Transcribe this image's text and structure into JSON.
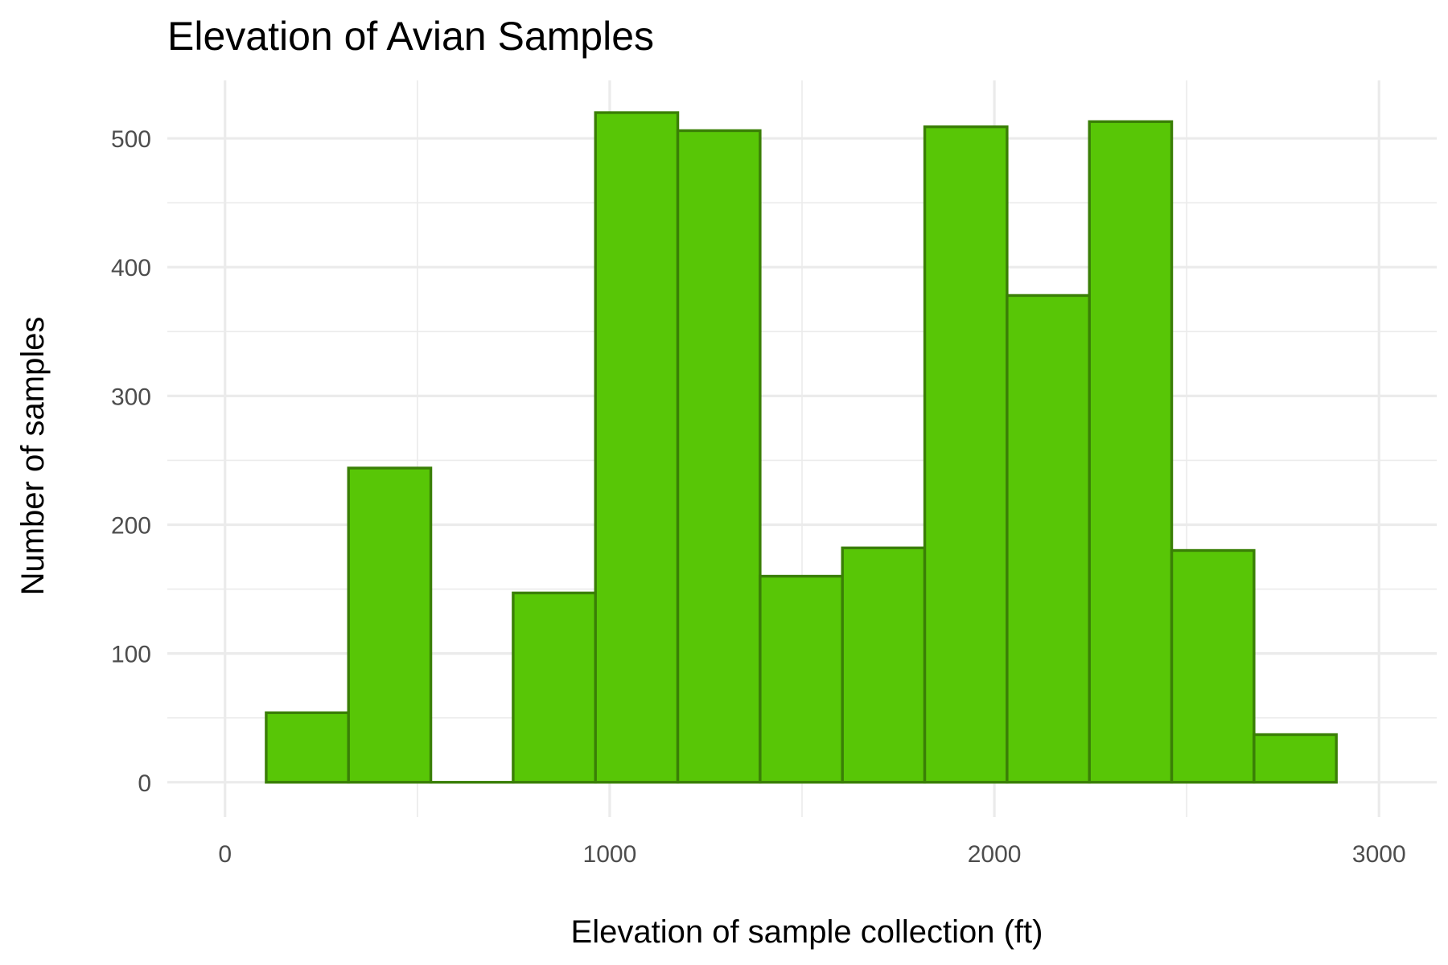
{
  "colors": {
    "bar_fill": "#58C606",
    "bar_stroke": "#3A7F06",
    "grid": "#ebebeb",
    "tick_label": "#4d4d4d"
  },
  "chart_data": {
    "type": "bar",
    "title": "Elevation of Avian Samples",
    "xlabel": "Elevation of sample collection (ft)",
    "ylabel": "Number of samples",
    "xlim": [
      -150,
      3150
    ],
    "ylim": [
      -27,
      545
    ],
    "x_ticks": [
      0,
      1000,
      2000,
      3000
    ],
    "x_tick_labels": [
      "0",
      "1000",
      "2000",
      "3000"
    ],
    "x_minor_ticks": [
      500,
      1500,
      2500
    ],
    "y_ticks": [
      0,
      100,
      200,
      300,
      400,
      500
    ],
    "y_tick_labels": [
      "0",
      "100",
      "200",
      "300",
      "400",
      "500"
    ],
    "y_minor_ticks": [
      50,
      150,
      250,
      350,
      450
    ],
    "grid": true,
    "legend": "none",
    "bins": [
      {
        "x0": 107,
        "x1": 321,
        "count": 54
      },
      {
        "x0": 321,
        "x1": 535,
        "count": 244
      },
      {
        "x0": 535,
        "x1": 749,
        "count": 0
      },
      {
        "x0": 749,
        "x1": 963,
        "count": 147
      },
      {
        "x0": 963,
        "x1": 1177,
        "count": 520
      },
      {
        "x0": 1177,
        "x1": 1391,
        "count": 506
      },
      {
        "x0": 1391,
        "x1": 1605,
        "count": 160
      },
      {
        "x0": 1605,
        "x1": 1819,
        "count": 182
      },
      {
        "x0": 1819,
        "x1": 2033,
        "count": 509
      },
      {
        "x0": 2033,
        "x1": 2247,
        "count": 378
      },
      {
        "x0": 2247,
        "x1": 2461,
        "count": 513
      },
      {
        "x0": 2461,
        "x1": 2675,
        "count": 180
      },
      {
        "x0": 2675,
        "x1": 2889,
        "count": 37
      }
    ]
  }
}
